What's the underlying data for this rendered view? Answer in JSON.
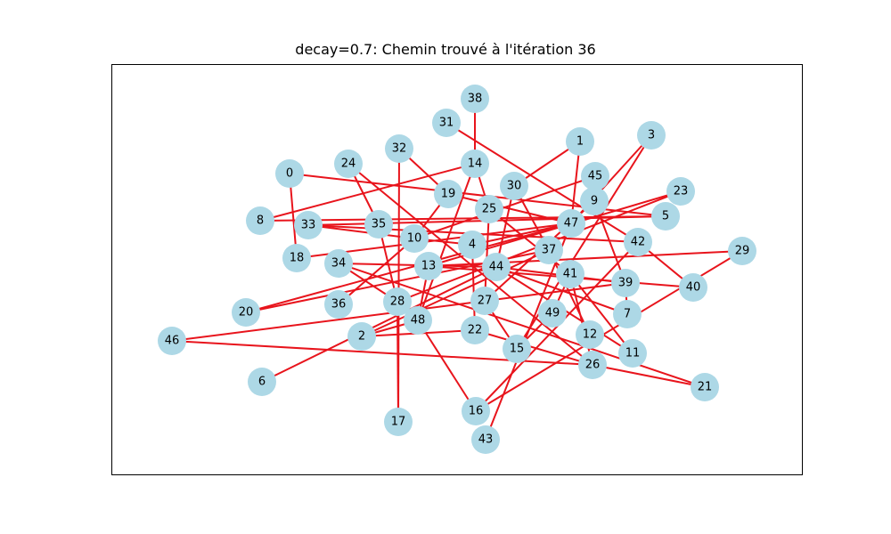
{
  "title": "decay=0.7: Chemin trouvé à l'itération 36",
  "colors": {
    "edge": "#e8141c",
    "node_fill": "#add8e6",
    "frame": "#000000",
    "background": "#ffffff"
  },
  "graph": {
    "nodes": [
      "0",
      "1",
      "2",
      "3",
      "4",
      "5",
      "6",
      "7",
      "8",
      "9",
      "10",
      "11",
      "12",
      "13",
      "14",
      "15",
      "16",
      "17",
      "18",
      "19",
      "20",
      "21",
      "22",
      "23",
      "24",
      "25",
      "26",
      "27",
      "28",
      "29",
      "30",
      "31",
      "32",
      "33",
      "34",
      "35",
      "36",
      "37",
      "38",
      "39",
      "40",
      "41",
      "42",
      "43",
      "44",
      "45",
      "46",
      "47",
      "48",
      "49"
    ],
    "edges": [
      [
        "38",
        "14"
      ],
      [
        "14",
        "8"
      ],
      [
        "14",
        "25"
      ],
      [
        "14",
        "48"
      ],
      [
        "31",
        "42"
      ],
      [
        "32",
        "17"
      ],
      [
        "32",
        "19"
      ],
      [
        "24",
        "35"
      ],
      [
        "24",
        "26"
      ],
      [
        "0",
        "5"
      ],
      [
        "0",
        "18"
      ],
      [
        "18",
        "47"
      ],
      [
        "19",
        "10"
      ],
      [
        "19",
        "47"
      ],
      [
        "1",
        "30"
      ],
      [
        "1",
        "47"
      ],
      [
        "3",
        "47"
      ],
      [
        "3",
        "15"
      ],
      [
        "45",
        "10"
      ],
      [
        "30",
        "37"
      ],
      [
        "30",
        "44"
      ],
      [
        "9",
        "39"
      ],
      [
        "9",
        "27"
      ],
      [
        "25",
        "41"
      ],
      [
        "25",
        "27"
      ],
      [
        "23",
        "13"
      ],
      [
        "23",
        "28"
      ],
      [
        "5",
        "8"
      ],
      [
        "5",
        "33"
      ],
      [
        "33",
        "10"
      ],
      [
        "33",
        "42"
      ],
      [
        "35",
        "28"
      ],
      [
        "10",
        "36"
      ],
      [
        "10",
        "4"
      ],
      [
        "4",
        "47"
      ],
      [
        "4",
        "22"
      ],
      [
        "47",
        "20"
      ],
      [
        "47",
        "43"
      ],
      [
        "29",
        "16"
      ],
      [
        "29",
        "13"
      ],
      [
        "42",
        "40"
      ],
      [
        "42",
        "16"
      ],
      [
        "37",
        "2"
      ],
      [
        "37",
        "20"
      ],
      [
        "37",
        "12"
      ],
      [
        "44",
        "39"
      ],
      [
        "44",
        "7"
      ],
      [
        "44",
        "11"
      ],
      [
        "44",
        "6"
      ],
      [
        "44",
        "34"
      ],
      [
        "34",
        "21"
      ],
      [
        "41",
        "26"
      ],
      [
        "41",
        "49"
      ],
      [
        "41",
        "11"
      ],
      [
        "39",
        "46"
      ],
      [
        "39",
        "7"
      ],
      [
        "13",
        "40"
      ],
      [
        "13",
        "48"
      ],
      [
        "28",
        "17"
      ],
      [
        "28",
        "34"
      ],
      [
        "48",
        "16"
      ],
      [
        "48",
        "2"
      ],
      [
        "2",
        "22"
      ],
      [
        "22",
        "26"
      ],
      [
        "46",
        "26"
      ],
      [
        "26",
        "21"
      ],
      [
        "49",
        "15"
      ],
      [
        "15",
        "27"
      ]
    ]
  }
}
